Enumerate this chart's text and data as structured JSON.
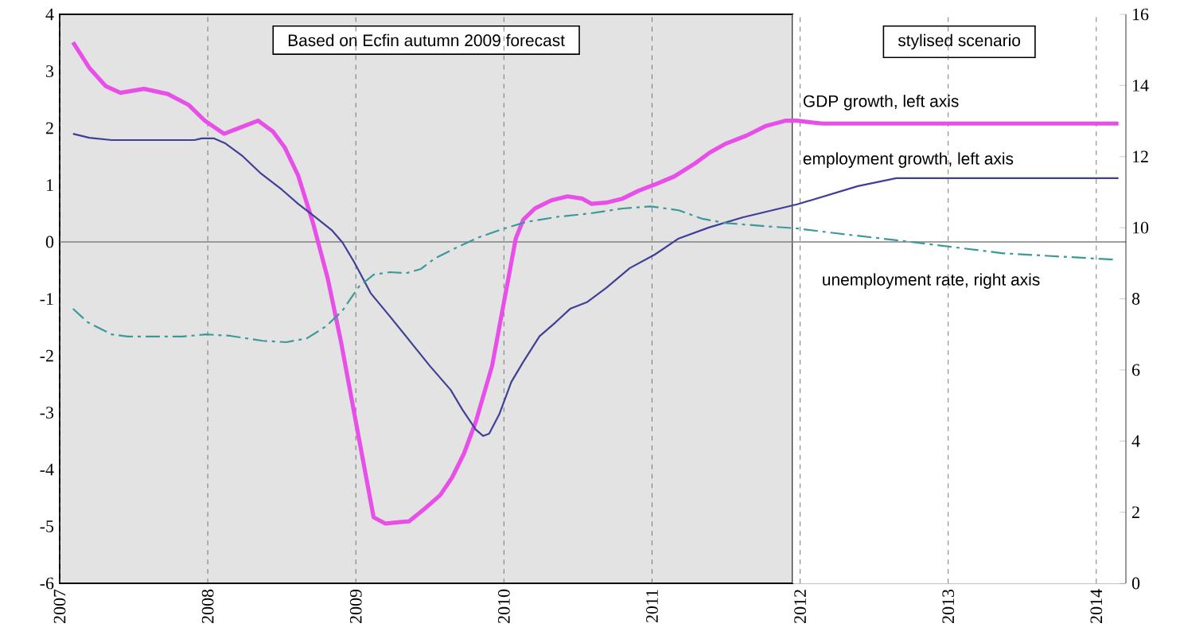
{
  "chart_data": {
    "type": "line",
    "xlim": [
      2007,
      2014.2
    ],
    "xticks": [
      2007,
      2008,
      2009,
      2010,
      2011,
      2012,
      2013,
      2014
    ],
    "ylim": [
      -6,
      4
    ],
    "yticks": [
      -6,
      -5,
      -4,
      -3,
      -2,
      -1,
      0,
      1,
      2,
      3,
      4
    ],
    "y2lim": [
      0,
      16
    ],
    "y2ticks": [
      0,
      2,
      4,
      6,
      8,
      10,
      12,
      14,
      16
    ],
    "grid": "x",
    "bands": [
      {
        "axis": "x",
        "from": 2007,
        "to": 2011.95,
        "label": "Based on Ecfin autumn 2009 forecast",
        "color": "#e3e3e3"
      },
      {
        "axis": "x",
        "from": 2011.95,
        "to": 2014.2,
        "label": "stylised scenario",
        "color": "#ffffff"
      }
    ],
    "ref_lines": [
      {
        "axis": "y",
        "value": 0,
        "color": "#808080"
      }
    ],
    "series": [
      {
        "name": "GDP growth, left axis",
        "color": "#e84ee8",
        "line_style": "solid",
        "x": [
          2007.09,
          2007.2,
          2007.31,
          2007.41,
          2007.57,
          2007.73,
          2007.87,
          2007.98,
          2008.11,
          2008.22,
          2008.34,
          2008.44,
          2008.52,
          2008.61,
          2008.71,
          2008.81,
          2008.9,
          2008.98,
          2009.05,
          2009.12,
          2009.2,
          2009.36,
          2009.46,
          2009.57,
          2009.65,
          2009.73,
          2009.81,
          2009.92,
          2010.0,
          2010.08,
          2010.13,
          2010.21,
          2010.32,
          2010.43,
          2010.53,
          2010.59,
          2010.69,
          2010.8,
          2010.91,
          2011.02,
          2011.15,
          2011.29,
          2011.39,
          2011.5,
          2011.64,
          2011.77,
          2011.9,
          2011.98,
          2012.15,
          2014.15
        ],
        "values": [
          3.51,
          3.06,
          2.74,
          2.62,
          2.69,
          2.6,
          2.41,
          2.13,
          1.9,
          2.01,
          2.13,
          1.94,
          1.66,
          1.17,
          0.34,
          -0.64,
          -1.76,
          -2.88,
          -3.86,
          -4.84,
          -4.95,
          -4.91,
          -4.7,
          -4.45,
          -4.14,
          -3.72,
          -3.16,
          -2.18,
          -1.06,
          0.06,
          0.39,
          0.59,
          0.73,
          0.8,
          0.76,
          0.67,
          0.69,
          0.76,
          0.9,
          1.01,
          1.15,
          1.38,
          1.57,
          1.73,
          1.87,
          2.04,
          2.13,
          2.13,
          2.08,
          2.08
        ]
      },
      {
        "name": "employment growth, left axis",
        "color": "#3f3f98",
        "line_style": "solid",
        "x": [
          2007.09,
          2007.2,
          2007.35,
          2007.91,
          2007.96,
          2008.04,
          2008.12,
          2008.23,
          2008.36,
          2008.5,
          2008.61,
          2008.72,
          2008.84,
          2008.91,
          2008.99,
          2009.1,
          2009.23,
          2009.37,
          2009.5,
          2009.64,
          2009.72,
          2009.81,
          2009.86,
          2009.9,
          2009.97,
          2010.05,
          2010.13,
          2010.24,
          2010.35,
          2010.45,
          2010.56,
          2010.69,
          2010.85,
          2011.02,
          2011.18,
          2011.38,
          2011.61,
          2011.98,
          2012.39,
          2012.65,
          2014.15
        ],
        "values": [
          1.9,
          1.83,
          1.79,
          1.79,
          1.82,
          1.82,
          1.73,
          1.52,
          1.2,
          0.92,
          0.67,
          0.45,
          0.2,
          -0.01,
          -0.36,
          -0.9,
          -1.31,
          -1.76,
          -2.18,
          -2.6,
          -2.95,
          -3.3,
          -3.41,
          -3.37,
          -3.02,
          -2.46,
          -2.11,
          -1.66,
          -1.41,
          -1.17,
          -1.06,
          -0.81,
          -0.46,
          -0.22,
          0.06,
          0.25,
          0.43,
          0.66,
          0.98,
          1.12,
          1.12
        ]
      },
      {
        "name": "unemployment rate, right axis",
        "color": "#3a9a9a",
        "axis": "y2",
        "line_style": "dashdot",
        "x": [
          2007.09,
          2007.19,
          2007.35,
          2007.46,
          2007.83,
          2007.99,
          2008.15,
          2008.37,
          2008.53,
          2008.67,
          2008.8,
          2008.91,
          2009.02,
          2009.12,
          2009.23,
          2009.34,
          2009.44,
          2009.53,
          2009.67,
          2009.83,
          2009.99,
          2010.15,
          2010.37,
          2010.58,
          2010.8,
          2010.99,
          2011.18,
          2011.34,
          2011.5,
          2011.77,
          2011.98,
          2012.25,
          2012.79,
          2013.37,
          2014.13
        ],
        "values": [
          7.72,
          7.34,
          7.0,
          6.94,
          6.94,
          7.0,
          6.96,
          6.82,
          6.78,
          6.89,
          7.23,
          7.67,
          8.34,
          8.68,
          8.75,
          8.72,
          8.84,
          9.13,
          9.42,
          9.73,
          9.96,
          10.16,
          10.31,
          10.4,
          10.54,
          10.6,
          10.49,
          10.25,
          10.13,
          10.04,
          9.98,
          9.84,
          9.58,
          9.28,
          9.1
        ]
      }
    ]
  }
}
